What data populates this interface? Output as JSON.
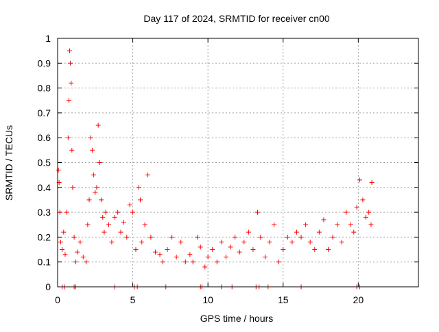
{
  "chart_data": {
    "type": "scatter",
    "title": "Day 117 of 2024, SRMTID for receiver cn00",
    "xlabel": "GPS time / hours",
    "ylabel": "SRMTID / TECUs",
    "xlim": [
      0,
      24
    ],
    "ylim": [
      0,
      1
    ],
    "xticks": [
      0,
      5,
      10,
      15,
      20
    ],
    "xtick_labels": [
      "0",
      "5",
      "10",
      "15",
      "20"
    ],
    "yticks": [
      0,
      0.1,
      0.2,
      0.3,
      0.4,
      0.5,
      0.6,
      0.7,
      0.8,
      0.9,
      1
    ],
    "ytick_labels": [
      "0",
      "0.1",
      "0.2",
      "0.3",
      "0.4",
      "0.5",
      "0.6",
      "0.7",
      "0.8",
      "0.9",
      "1"
    ],
    "grid": true,
    "marker": "+",
    "series": [
      {
        "name": "SRMTID",
        "color": "#ff0000",
        "x": [
          0.05,
          0.1,
          0.15,
          0.2,
          0.3,
          0.4,
          0.5,
          0.6,
          0.7,
          0.75,
          0.8,
          0.85,
          0.9,
          0.95,
          1.0,
          1.1,
          1.2,
          1.3,
          1.5,
          1.7,
          1.9,
          2.0,
          2.1,
          2.2,
          2.3,
          2.4,
          2.5,
          2.6,
          2.7,
          2.8,
          2.9,
          3.0,
          3.1,
          3.2,
          3.4,
          3.6,
          3.8,
          4.0,
          4.2,
          4.4,
          4.6,
          4.8,
          5.0,
          5.2,
          5.4,
          5.5,
          5.6,
          5.8,
          6.0,
          6.2,
          6.5,
          6.8,
          7.0,
          7.3,
          7.6,
          7.9,
          8.2,
          8.5,
          8.8,
          9.0,
          9.3,
          9.5,
          9.8,
          10.0,
          10.3,
          10.6,
          10.9,
          11.2,
          11.5,
          11.8,
          12.1,
          12.4,
          12.7,
          13.0,
          13.3,
          13.5,
          13.8,
          14.1,
          14.4,
          14.7,
          15.0,
          15.3,
          15.6,
          15.9,
          16.2,
          16.5,
          16.8,
          17.1,
          17.4,
          17.7,
          18.0,
          18.3,
          18.6,
          18.9,
          19.2,
          19.5,
          19.7,
          19.9,
          20.1,
          20.3,
          20.5,
          20.7,
          20.85,
          20.9
        ],
        "y": [
          0.47,
          0.42,
          0.3,
          0.18,
          0.15,
          0.22,
          0.13,
          0.3,
          0.6,
          0.75,
          0.95,
          0.9,
          0.82,
          0.55,
          0.4,
          0.2,
          0.1,
          0.14,
          0.18,
          0.12,
          0.1,
          0.25,
          0.35,
          0.6,
          0.55,
          0.45,
          0.38,
          0.4,
          0.65,
          0.5,
          0.35,
          0.28,
          0.22,
          0.3,
          0.25,
          0.18,
          0.28,
          0.3,
          0.22,
          0.26,
          0.2,
          0.33,
          0.3,
          0.15,
          0.4,
          0.35,
          0.18,
          0.25,
          0.45,
          0.2,
          0.14,
          0.13,
          0.1,
          0.15,
          0.2,
          0.12,
          0.18,
          0.1,
          0.13,
          0.1,
          0.2,
          0.16,
          0.08,
          0.12,
          0.15,
          0.1,
          0.18,
          0.12,
          0.16,
          0.2,
          0.14,
          0.18,
          0.22,
          0.15,
          0.3,
          0.2,
          0.12,
          0.18,
          0.25,
          0.1,
          0.15,
          0.2,
          0.18,
          0.22,
          0.2,
          0.25,
          0.18,
          0.15,
          0.22,
          0.27,
          0.15,
          0.2,
          0.25,
          0.18,
          0.3,
          0.25,
          0.22,
          0.32,
          0.43,
          0.35,
          0.28,
          0.3,
          0.25,
          0.42
        ]
      }
    ],
    "zero_markers_x": [
      0.3,
      0.45,
      1.1,
      1.2,
      3.8,
      5.1,
      5.3,
      7.2,
      9.5,
      9.6,
      10.9,
      11.6,
      13.2,
      13.4,
      14.0,
      16.2,
      19.9,
      20.1
    ]
  }
}
